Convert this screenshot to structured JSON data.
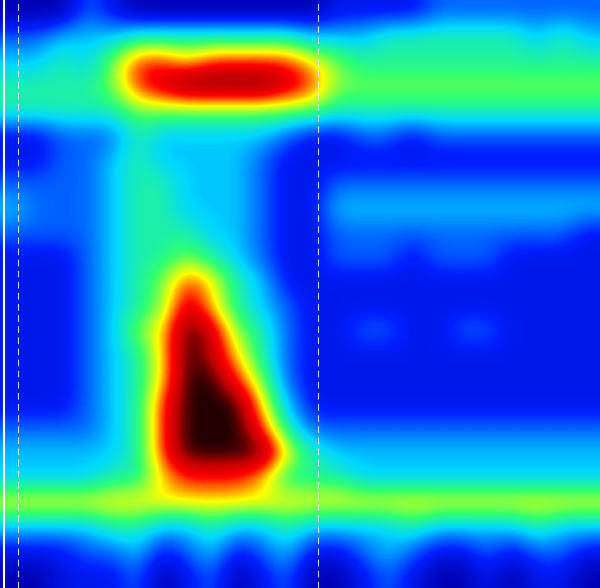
{
  "chart_data": {
    "type": "heatmap",
    "tick_labels": false,
    "cells": [
      [
        1,
        1,
        1,
        3,
        2,
        1,
        1,
        1,
        1,
        1,
        1,
        1,
        1,
        2,
        2,
        2,
        2,
        3,
        3,
        3,
        3,
        3,
        3,
        3
      ],
      [
        3,
        3,
        4,
        4,
        4,
        5,
        5,
        5,
        5,
        5,
        5,
        5,
        4,
        4,
        4,
        5,
        5,
        5,
        5,
        5,
        5,
        4,
        5,
        4
      ],
      [
        4,
        4,
        5,
        4,
        6,
        8,
        8,
        7,
        8,
        8,
        8,
        8,
        7,
        6,
        5,
        5,
        5,
        5,
        5,
        5,
        5,
        5,
        5,
        5
      ],
      [
        5,
        5,
        5,
        5,
        6,
        8,
        9,
        10,
        10,
        10,
        10,
        9,
        8,
        6,
        6,
        6,
        6,
        6,
        6,
        6,
        6,
        6,
        6,
        6
      ],
      [
        5,
        5,
        5,
        5,
        5,
        6,
        6,
        6,
        6,
        6,
        6,
        6,
        6,
        5,
        5,
        5,
        5,
        5,
        5,
        5,
        5,
        5,
        5,
        5
      ],
      [
        2,
        2,
        3,
        3,
        3,
        5,
        4,
        4,
        4,
        4,
        4,
        3,
        2,
        2,
        3,
        3,
        2,
        3,
        3,
        3,
        3,
        3,
        3,
        3
      ],
      [
        2,
        2,
        3,
        3,
        4,
        5,
        4,
        4,
        4,
        4,
        3,
        2,
        2,
        2,
        2,
        2,
        2,
        2,
        2,
        2,
        2,
        2,
        2,
        2
      ],
      [
        3,
        3,
        3,
        3,
        4,
        5,
        5,
        4,
        4,
        4,
        3,
        2,
        2,
        3,
        3,
        3,
        3,
        3,
        3,
        3,
        3,
        3,
        3,
        3
      ],
      [
        4,
        3,
        3,
        3,
        4,
        5,
        5,
        4,
        4,
        4,
        3,
        2,
        2,
        4,
        4,
        4,
        4,
        4,
        4,
        4,
        4,
        4,
        4,
        4
      ],
      [
        3,
        3,
        3,
        3,
        4,
        5,
        5,
        5,
        4,
        4,
        3,
        2,
        2,
        3,
        3,
        3,
        3,
        3,
        3,
        3,
        3,
        3,
        3,
        2
      ],
      [
        2,
        2,
        2,
        3,
        4,
        5,
        5,
        6,
        5,
        4,
        3,
        2,
        2,
        3,
        3,
        3,
        2,
        3,
        3,
        3,
        2,
        2,
        2,
        2
      ],
      [
        2,
        2,
        2,
        3,
        4,
        5,
        6,
        8,
        7,
        5,
        4,
        2,
        2,
        2,
        2,
        2,
        2,
        2,
        2,
        2,
        2,
        2,
        2,
        2
      ],
      [
        2,
        2,
        2,
        3,
        4,
        5,
        6,
        9,
        7,
        5,
        4,
        3,
        2,
        2,
        2,
        2,
        2,
        2,
        2,
        2,
        2,
        2,
        2,
        2
      ],
      [
        2,
        2,
        2,
        3,
        4,
        6,
        7,
        10,
        9,
        6,
        5,
        3,
        2,
        2,
        3,
        3,
        2,
        2,
        3,
        3,
        2,
        2,
        2,
        2
      ],
      [
        2,
        2,
        2,
        3,
        4,
        5,
        7,
        10,
        9,
        7,
        5,
        3,
        2,
        2,
        2,
        2,
        2,
        2,
        2,
        2,
        2,
        2,
        2,
        2
      ],
      [
        2,
        2,
        2,
        3,
        4,
        5,
        7,
        10,
        10,
        8,
        6,
        3,
        2,
        2,
        2,
        2,
        2,
        2,
        2,
        2,
        2,
        2,
        2,
        2
      ],
      [
        2,
        2,
        2,
        3,
        4,
        5,
        8,
        10,
        10,
        10,
        7,
        4,
        2,
        2,
        2,
        2,
        2,
        2,
        2,
        2,
        2,
        2,
        2,
        2
      ],
      [
        3,
        3,
        3,
        3,
        4,
        5,
        8,
        10,
        10,
        10,
        8,
        5,
        3,
        3,
        3,
        3,
        3,
        3,
        3,
        3,
        3,
        3,
        3,
        3
      ],
      [
        4,
        4,
        4,
        4,
        4,
        5,
        8,
        10,
        10,
        10,
        10,
        7,
        5,
        4,
        4,
        4,
        4,
        4,
        4,
        4,
        4,
        4,
        4,
        4
      ],
      [
        4,
        4,
        4,
        4,
        5,
        5,
        7,
        8,
        8,
        8,
        7,
        5,
        5,
        5,
        4,
        4,
        4,
        4,
        4,
        4,
        4,
        4,
        4,
        4
      ],
      [
        7,
        7,
        7,
        7,
        7,
        7,
        7,
        7,
        7,
        7,
        7,
        7,
        7,
        7,
        7,
        7,
        7,
        7,
        7,
        7,
        7,
        7,
        7,
        7
      ],
      [
        4,
        4,
        4,
        4,
        5,
        5,
        4,
        4,
        5,
        4,
        4,
        5,
        4,
        4,
        4,
        4,
        5,
        4,
        4,
        4,
        4,
        5,
        4,
        4
      ],
      [
        2,
        2,
        2,
        3,
        3,
        4,
        2,
        3,
        4,
        2,
        3,
        4,
        2,
        2,
        3,
        4,
        3,
        2,
        2,
        3,
        2,
        3,
        3,
        2
      ],
      [
        1,
        1,
        2,
        2,
        2,
        3,
        1,
        2,
        3,
        1,
        2,
        3,
        1,
        1,
        2,
        3,
        2,
        1,
        1,
        2,
        1,
        2,
        2,
        1
      ]
    ]
  }
}
